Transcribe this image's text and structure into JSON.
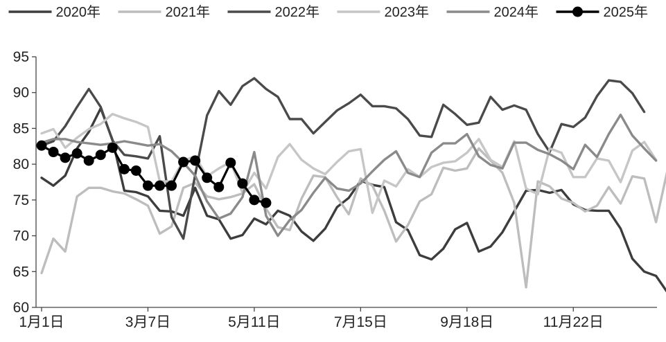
{
  "chart_data": {
    "type": "line",
    "title": "",
    "xlabel": "",
    "ylabel": "",
    "ylim": [
      60,
      95
    ],
    "yticks": [
      60,
      65,
      70,
      75,
      80,
      85,
      90,
      95
    ],
    "grid": false,
    "legend_position": "top",
    "x_tick_labels": [
      {
        "week": 1,
        "label": "1月1日"
      },
      {
        "week": 10,
        "label": "3月7日"
      },
      {
        "week": 19,
        "label": "5月11日"
      },
      {
        "week": 28,
        "label": "7月15日"
      },
      {
        "week": 37,
        "label": "9月18日"
      },
      {
        "week": 46,
        "label": "11月22日"
      }
    ],
    "series": [
      {
        "name": "2020年",
        "color": "#3d3d3d",
        "marker": false,
        "values": [
          78.1,
          77.0,
          78.4,
          82.2,
          84.5,
          87.8,
          83.4,
          76.3,
          76.1,
          75.5,
          73.5,
          73.4,
          72.8,
          76.7,
          72.8,
          72.3,
          69.6,
          70.1,
          72.4,
          71.6,
          73.5,
          72.8,
          70.6,
          69.3,
          71.0,
          74.0,
          75.3,
          77.7,
          77.1,
          76.8,
          71.9,
          70.8,
          67.3,
          66.7,
          68.2,
          70.9,
          71.8,
          67.8,
          68.5,
          70.5,
          73.4,
          76.3,
          76.4,
          76.0,
          76.4,
          74.4,
          73.6,
          73.5,
          73.5,
          71.0,
          66.8,
          65.0,
          64.4,
          62.0
        ]
      },
      {
        "name": "2021年",
        "color": "#bdbdbd",
        "marker": false,
        "values": [
          64.8,
          69.6,
          67.8,
          75.5,
          76.7,
          76.7,
          76.2,
          75.9,
          75.1,
          74.2,
          70.3,
          71.3,
          76.7,
          77.4,
          75.5,
          75.1,
          75.4,
          75.9,
          77.2,
          73.8,
          71.2,
          70.8,
          75.2,
          78.4,
          78.2,
          75.4,
          73.0,
          78.0,
          77.0,
          73.5,
          69.2,
          71.5,
          74.8,
          75.8,
          79.5,
          79.1,
          79.4,
          82.2,
          80.5,
          78.8,
          74.6,
          62.8,
          77.6,
          76.9,
          75.2,
          74.6,
          73.4,
          74.2,
          76.8,
          74.5,
          78.3,
          78.0,
          71.9,
          79.4
        ]
      },
      {
        "name": "2022年",
        "color": "#4a4a4a",
        "marker": false,
        "values": [
          82.6,
          83.2,
          85.3,
          88.0,
          90.5,
          88.0,
          83.3,
          81.3,
          81.1,
          80.8,
          83.9,
          72.6,
          69.6,
          78.5,
          86.8,
          90.2,
          88.3,
          90.9,
          92.0,
          90.5,
          89.4,
          86.3,
          86.3,
          84.3,
          85.9,
          87.5,
          88.5,
          89.7,
          88.1,
          88.1,
          87.8,
          86.3,
          84.0,
          83.8,
          88.3,
          87.0,
          85.5,
          85.8,
          89.4,
          87.6,
          88.2,
          87.6,
          84.2,
          81.7,
          85.6,
          85.2,
          86.5,
          89.5,
          91.7,
          91.5,
          89.9,
          87.3
        ]
      },
      {
        "name": "2023年",
        "color": "#c6c6c6",
        "marker": false,
        "values": [
          84.3,
          84.9,
          82.3,
          83.7,
          84.9,
          85.6,
          87.0,
          86.4,
          85.9,
          85.2,
          77.6,
          77.6,
          80.5,
          81.1,
          78.3,
          79.4,
          80.3,
          76.0,
          78.8,
          76.6,
          81.0,
          82.8,
          80.6,
          79.4,
          78.6,
          80.3,
          81.8,
          82.1,
          73.2,
          77.7,
          76.9,
          79.3,
          78.2,
          79.6,
          80.2,
          80.4,
          81.6,
          83.5,
          80.6,
          79.6,
          83.2,
          76.6,
          75.8,
          82.2,
          81.6,
          78.2,
          78.2,
          80.8,
          80.5,
          77.5,
          81.9,
          83.1,
          80.6
        ]
      },
      {
        "name": "2024年",
        "color": "#8a8a8a",
        "marker": false,
        "values": [
          83.0,
          83.5,
          83.5,
          83.1,
          82.9,
          82.7,
          82.9,
          83.2,
          82.9,
          82.6,
          82.8,
          81.8,
          80.2,
          78.4,
          74.8,
          72.4,
          73.1,
          75.4,
          81.7,
          72.8,
          70.0,
          72.2,
          73.6,
          76.0,
          78.1,
          76.6,
          76.3,
          77.3,
          79.0,
          80.6,
          81.8,
          78.8,
          78.2,
          81.6,
          82.9,
          82.9,
          84.2,
          81.1,
          79.9,
          79.4,
          83.0,
          83.0,
          82.0,
          81.4,
          80.5,
          79.3,
          82.7,
          81.0,
          84.2,
          86.9,
          84.0,
          82.2,
          80.5
        ]
      },
      {
        "name": "2025年",
        "color": "#000000",
        "marker": true,
        "values": [
          82.6,
          81.7,
          80.9,
          81.5,
          80.5,
          81.3,
          82.3,
          79.3,
          79.1,
          77.0,
          77.0,
          77.0,
          80.3,
          80.5,
          78.1,
          76.8,
          80.2,
          77.3,
          75.0,
          74.6
        ]
      }
    ]
  }
}
